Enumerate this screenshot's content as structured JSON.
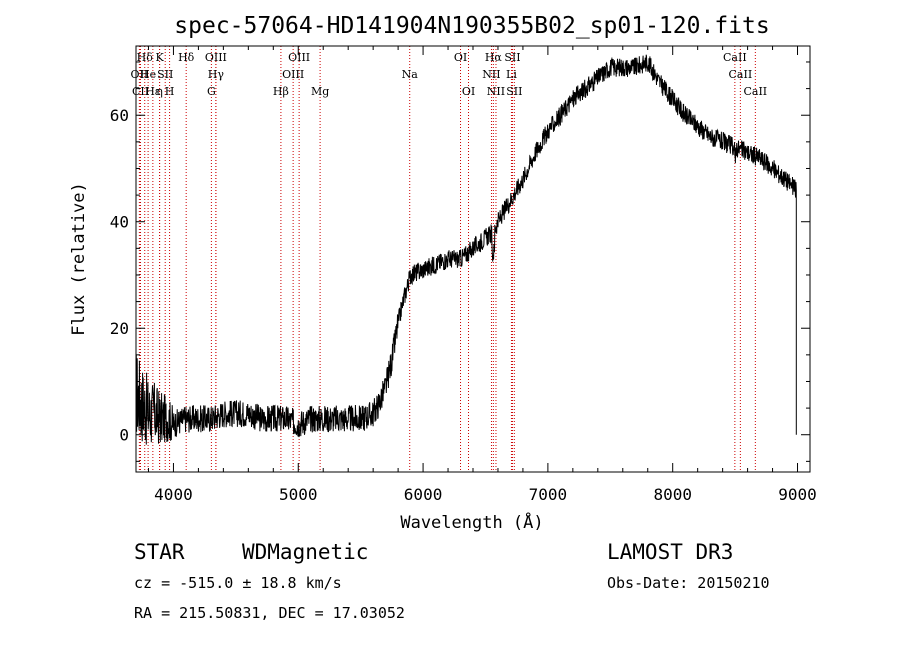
{
  "chart_data": {
    "type": "line",
    "title": "spec-57064-HD141904N190355B02_sp01-120.fits",
    "xlabel": "Wavelength (Å)",
    "ylabel": "Flux (relative)",
    "xlim": [
      3700,
      9100
    ],
    "ylim": [
      -7,
      73
    ],
    "xticks": [
      4000,
      5000,
      6000,
      7000,
      8000,
      9000
    ],
    "yticks": [
      0,
      20,
      40,
      60
    ],
    "series": [
      {
        "name": "flux",
        "x": [
          3700,
          3750,
          3800,
          3850,
          3900,
          3950,
          4000,
          4100,
          4200,
          4300,
          4400,
          4500,
          4600,
          4700,
          4800,
          4900,
          5000,
          5100,
          5200,
          5300,
          5400,
          5500,
          5600,
          5650,
          5700,
          5750,
          5800,
          5850,
          5900,
          6000,
          6100,
          6200,
          6300,
          6400,
          6500,
          6560,
          6600,
          6700,
          6800,
          6900,
          7000,
          7100,
          7200,
          7300,
          7400,
          7500,
          7600,
          7700,
          7800,
          7900,
          8000,
          8100,
          8200,
          8300,
          8400,
          8500,
          8600,
          8700,
          8800,
          8900,
          8990
        ],
        "y": [
          8,
          6,
          4,
          4,
          3,
          3,
          2,
          3,
          3,
          3,
          4,
          4,
          4,
          3,
          3,
          3,
          2,
          3,
          3,
          3,
          3,
          3,
          4,
          6,
          9,
          14,
          21,
          26,
          30,
          31,
          32,
          33,
          33,
          35,
          37,
          38,
          40,
          44,
          48,
          53,
          57,
          60,
          63,
          65,
          67,
          69,
          69,
          69,
          70,
          66,
          63,
          60,
          58,
          56,
          55,
          54,
          53,
          52,
          50,
          48,
          46
        ]
      }
    ],
    "line_markers": [
      {
        "label": "Hδ",
        "x": 3770,
        "row": 0
      },
      {
        "label": "OII",
        "x": 3727,
        "row": 1
      },
      {
        "label": "CII",
        "x": 3736,
        "row": 2
      },
      {
        "label": "He",
        "x": 3797,
        "row": 1
      },
      {
        "label": "Hε",
        "x": 3835,
        "row": 2
      },
      {
        "label": "K",
        "x": 3889,
        "row": 0
      },
      {
        "label": "η",
        "x": 3889,
        "row": 2
      },
      {
        "label": "SII",
        "x": 3934,
        "row": 1
      },
      {
        "label": "H",
        "x": 3969,
        "row": 2
      },
      {
        "label": "Hδ",
        "x": 4102,
        "row": 0
      },
      {
        "label": "OIII",
        "x": 4340,
        "row": 0
      },
      {
        "label": "Hγ",
        "x": 4340,
        "row": 1
      },
      {
        "label": "G",
        "x": 4304,
        "row": 2
      },
      {
        "label": "Hβ",
        "x": 4861,
        "row": 2
      },
      {
        "label": "OIII",
        "x": 5007,
        "row": 0
      },
      {
        "label": "OIII",
        "x": 4959,
        "row": 1
      },
      {
        "label": "Mg",
        "x": 5175,
        "row": 2
      },
      {
        "label": "Na",
        "x": 5893,
        "row": 1
      },
      {
        "label": "OI",
        "x": 6300,
        "row": 0
      },
      {
        "label": "OI",
        "x": 6364,
        "row": 2
      },
      {
        "label": "Hα",
        "x": 6563,
        "row": 0
      },
      {
        "label": "SII",
        "x": 6716,
        "row": 0
      },
      {
        "label": "NII",
        "x": 6548,
        "row": 1
      },
      {
        "label": "Li",
        "x": 6708,
        "row": 1
      },
      {
        "label": "NII",
        "x": 6584,
        "row": 2
      },
      {
        "label": "SII",
        "x": 6731,
        "row": 2
      },
      {
        "label": "CaII",
        "x": 8498,
        "row": 0
      },
      {
        "label": "CaII",
        "x": 8542,
        "row": 1
      },
      {
        "label": "CaII",
        "x": 8662,
        "row": 2
      }
    ]
  },
  "info": {
    "class": "STAR",
    "subclass": "WDMagnetic",
    "survey": "LAMOST DR3",
    "cz": "cz = -515.0 ± 18.8 km/s",
    "obs_date": "Obs-Date: 20150210",
    "radec": "RA = 215.50831, DEC =  17.03052"
  },
  "colors": {
    "marker_line": "#cc0000",
    "spectrum": "#000000",
    "axes": "#000000"
  }
}
